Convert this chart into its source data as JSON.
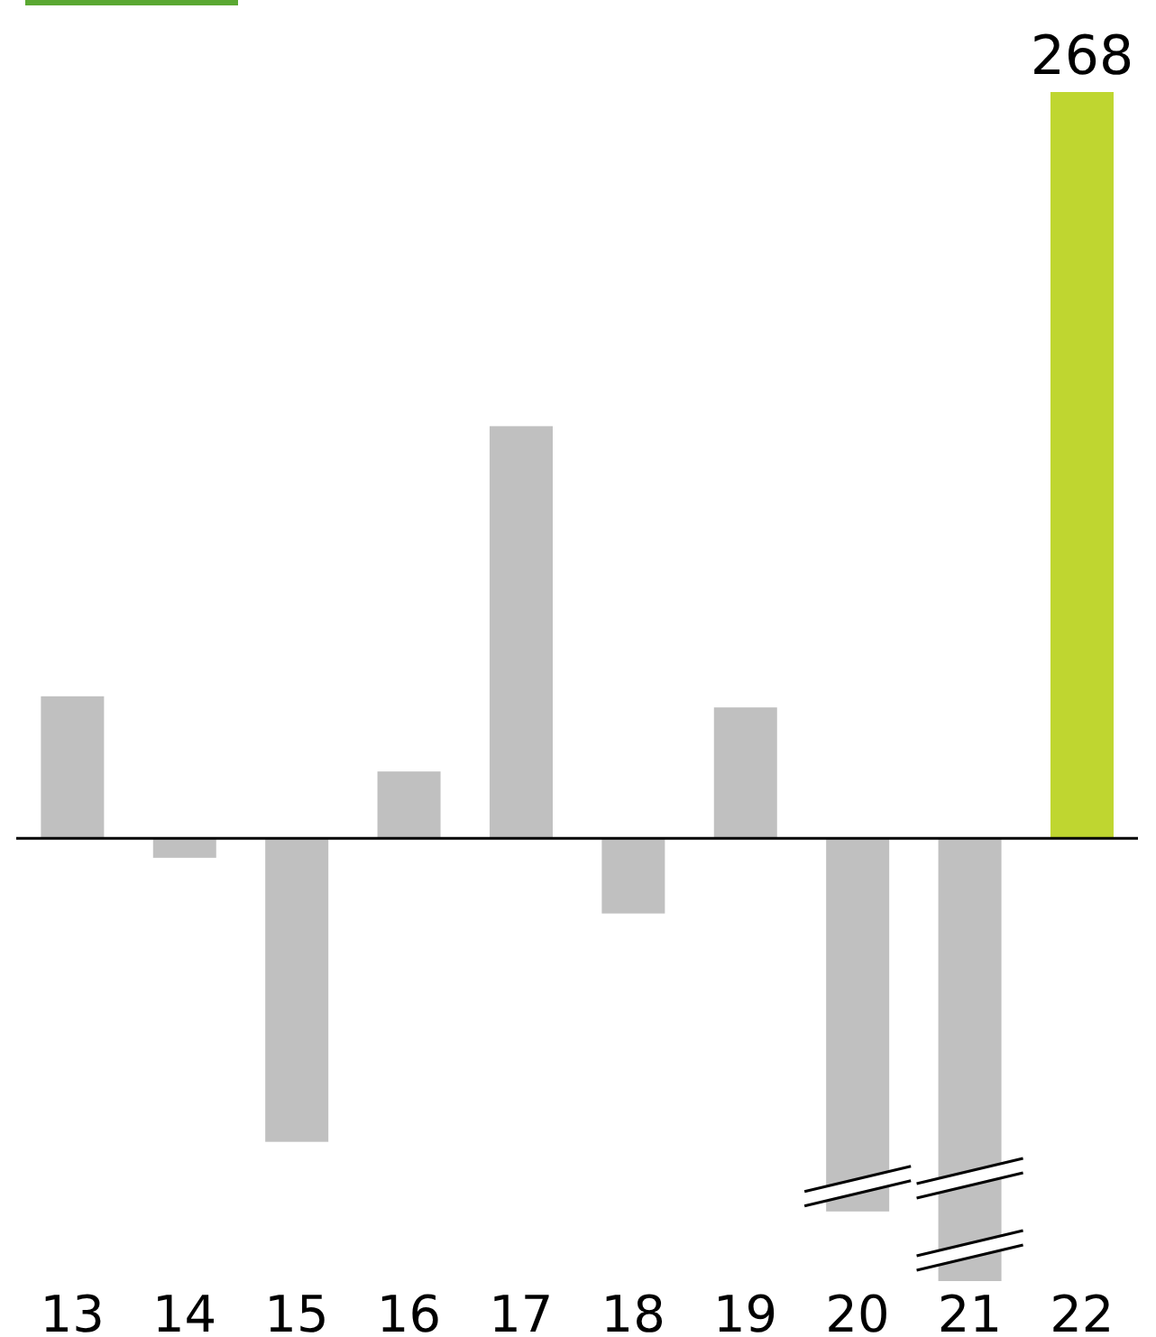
{
  "chart_data": {
    "type": "bar",
    "tick_labels": "x",
    "categories": [
      "13",
      "14",
      "15",
      "16",
      "17",
      "18",
      "19",
      "20",
      "21",
      "22"
    ],
    "values": [
      51,
      -7,
      -109,
      24,
      148,
      -27,
      47,
      -134,
      -159,
      268
    ],
    "colors": [
      "#c0c0c0",
      "#c0c0c0",
      "#c0c0c0",
      "#c0c0c0",
      "#c0c0c0",
      "#c0c0c0",
      "#c0c0c0",
      "#c0c0c0",
      "#c0c0c0",
      "#bfd630"
    ],
    "value_labels": [
      null,
      null,
      null,
      null,
      null,
      null,
      null,
      null,
      null,
      "268"
    ],
    "grid": false
  }
}
